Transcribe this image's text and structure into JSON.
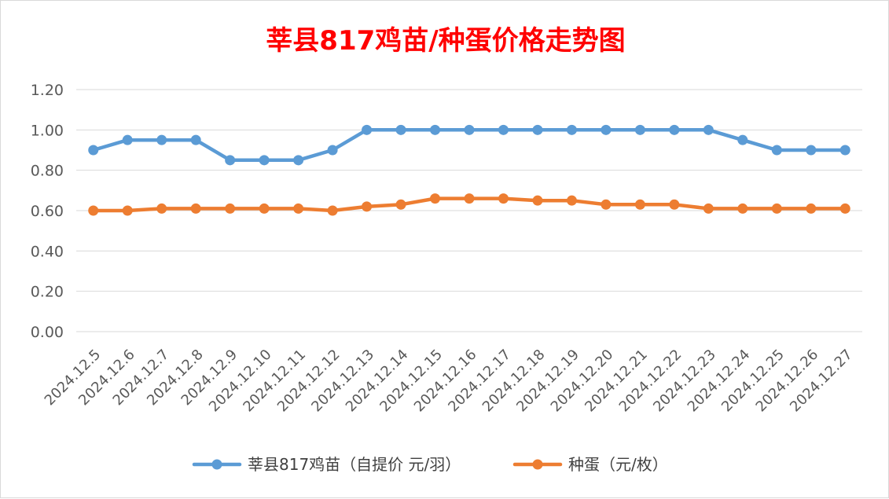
{
  "chart_data": {
    "type": "line",
    "title": "莘县817鸡苗/种蛋价格走势图",
    "xlabel": "",
    "ylabel": "",
    "ylim": [
      0,
      1.2
    ],
    "yticks": [
      "0.00",
      "0.20",
      "0.40",
      "0.60",
      "0.80",
      "1.00",
      "1.20"
    ],
    "grid": true,
    "legend_position": "bottom",
    "categories": [
      "2024.12.5",
      "2024.12.6",
      "2024.12.7",
      "2024.12.8",
      "2024.12.9",
      "2024.12.10",
      "2024.12.11",
      "2024.12.12",
      "2024.12.13",
      "2024.12.14",
      "2024.12.15",
      "2024.12.16",
      "2024.12.17",
      "2024.12.18",
      "2024.12.19",
      "2024.12.20",
      "2024.12.21",
      "2024.12.22",
      "2024.12.23",
      "2024.12.24",
      "2024.12.25",
      "2024.12.26",
      "2024.12.27"
    ],
    "series": [
      {
        "name": "莘县817鸡苗（自提价 元/羽）",
        "color": "#5b9bd5",
        "values": [
          0.9,
          0.95,
          0.95,
          0.95,
          0.85,
          0.85,
          0.85,
          0.9,
          1.0,
          1.0,
          1.0,
          1.0,
          1.0,
          1.0,
          1.0,
          1.0,
          1.0,
          1.0,
          1.0,
          0.95,
          0.9,
          0.9,
          0.9
        ]
      },
      {
        "name": "种蛋（元/枚）",
        "color": "#ed7d31",
        "values": [
          0.6,
          0.6,
          0.61,
          0.61,
          0.61,
          0.61,
          0.61,
          0.6,
          0.62,
          0.63,
          0.66,
          0.66,
          0.66,
          0.65,
          0.65,
          0.63,
          0.63,
          0.63,
          0.61,
          0.61,
          0.61,
          0.61,
          0.61
        ]
      }
    ]
  }
}
